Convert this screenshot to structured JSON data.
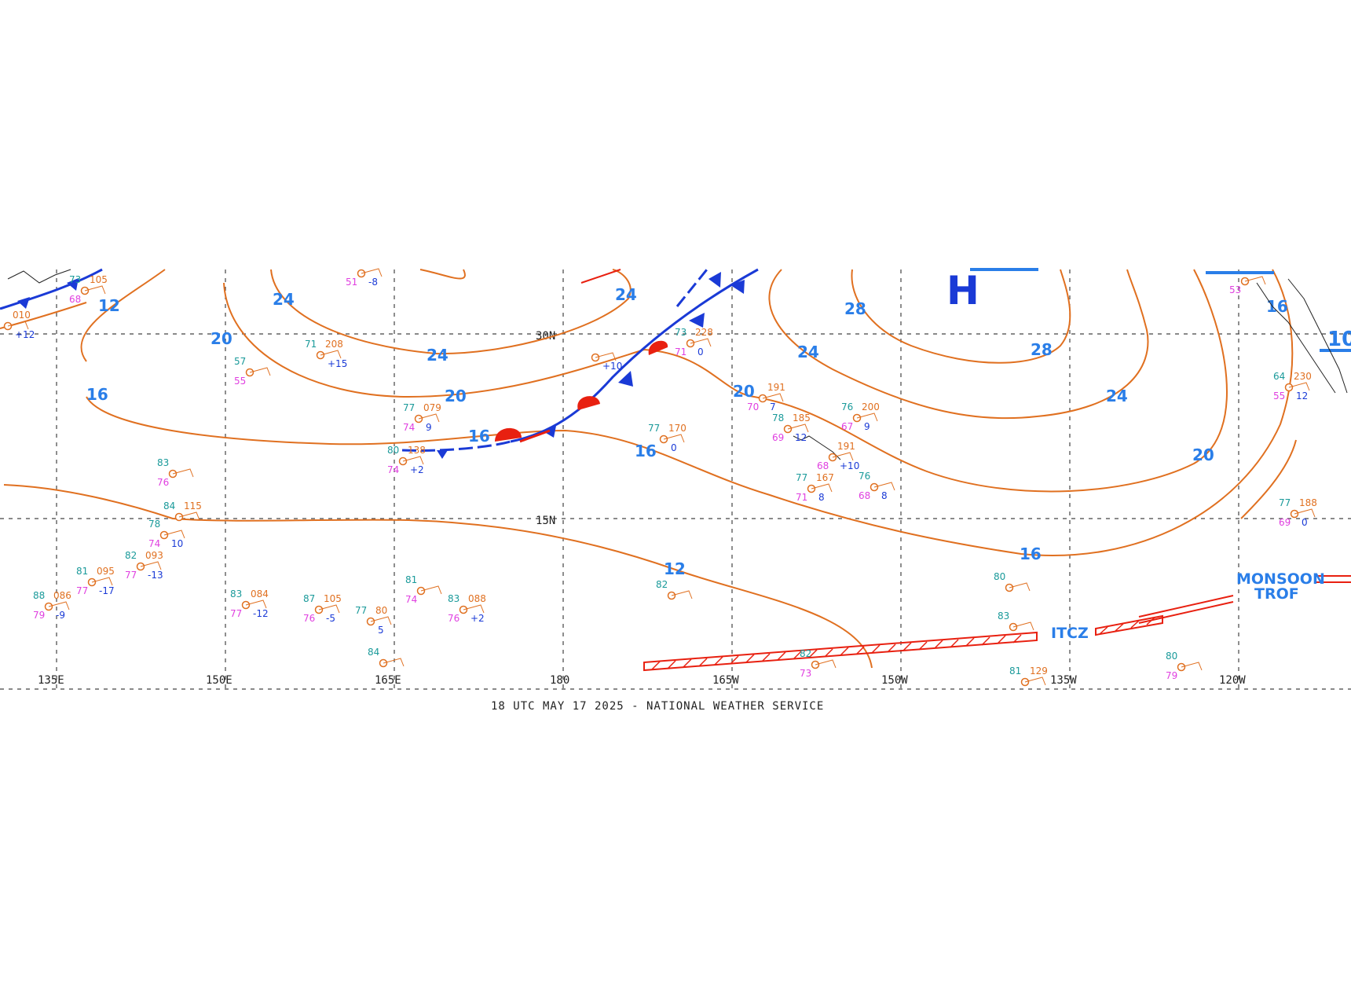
{
  "map": {
    "footer": "18 UTC MAY 17 2025 - NATIONAL WEATHER SERVICE",
    "lon_labels": [
      "135E",
      "150E",
      "165E",
      "180",
      "165W",
      "150W",
      "135W",
      "120W"
    ],
    "lat_labels": [
      "30N",
      "15N"
    ],
    "pressure_center": "H",
    "features": {
      "itcz": "ITCZ",
      "monsoon_line1": "MONSOON",
      "monsoon_line2": "TROF"
    },
    "isobar_labels": [
      "12",
      "16",
      "20",
      "24",
      "28",
      "10"
    ],
    "colors": {
      "isobar": "#e07020",
      "isobar_label": "#2a7ee8",
      "cold_front": "#1a3ad6",
      "warm_front": "#e82010",
      "itcz": "#e82010",
      "temperature": "#1a9a9a",
      "dewpoint": "#e040e0",
      "pressure_value": "#e07020",
      "tendency": "#1a3ad6"
    }
  },
  "stations": [
    {
      "t": "73",
      "p": "105",
      "d": "68",
      "tend": ""
    },
    {
      "t": "71",
      "p": "208",
      "d": "",
      "tend": "+15"
    },
    {
      "t": "57",
      "p": "",
      "d": "55",
      "tend": ""
    },
    {
      "t": "77",
      "p": "079",
      "d": "74",
      "tend": "9"
    },
    {
      "t": "80",
      "p": "138",
      "d": "74",
      "tend": "+2"
    },
    {
      "t": "73",
      "p": "228",
      "d": "71",
      "tend": "0"
    },
    {
      "t": "",
      "p": "191",
      "d": "70",
      "tend": "7"
    },
    {
      "t": "77",
      "p": "170",
      "d": "",
      "tend": "0"
    },
    {
      "t": "76",
      "p": "200",
      "d": "67",
      "tend": "9"
    },
    {
      "t": "78",
      "p": "185",
      "d": "69",
      "tend": "12"
    },
    {
      "t": "",
      "p": "191",
      "d": "68",
      "tend": "+10"
    },
    {
      "t": "77",
      "p": "167",
      "d": "71",
      "tend": "8"
    },
    {
      "t": "76",
      "p": "",
      "d": "68",
      "tend": "8"
    },
    {
      "t": "83",
      "p": "",
      "d": "76",
      "tend": ""
    },
    {
      "t": "84",
      "p": "115",
      "d": "",
      "tend": ""
    },
    {
      "t": "78",
      "p": "",
      "d": "74",
      "tend": "10"
    },
    {
      "t": "82",
      "p": "093",
      "d": "77",
      "tend": "-13"
    },
    {
      "t": "81",
      "p": "095",
      "d": "77",
      "tend": "-17"
    },
    {
      "t": "88",
      "p": "086",
      "d": "79",
      "tend": "-9"
    },
    {
      "t": "83",
      "p": "084",
      "d": "77",
      "tend": "-12"
    },
    {
      "t": "87",
      "p": "105",
      "d": "76",
      "tend": "-5"
    },
    {
      "t": "77",
      "p": "80",
      "d": "",
      "tend": "5"
    },
    {
      "t": "81",
      "p": "",
      "d": "74",
      "tend": ""
    },
    {
      "t": "83",
      "p": "088",
      "d": "76",
      "tend": "+2"
    },
    {
      "t": "84",
      "p": "",
      "d": "",
      "tend": ""
    },
    {
      "t": "82",
      "p": "",
      "d": "",
      "tend": ""
    },
    {
      "t": "82",
      "p": "",
      "d": "73",
      "tend": ""
    },
    {
      "t": "80",
      "p": "",
      "d": "",
      "tend": ""
    },
    {
      "t": "83",
      "p": "",
      "d": "",
      "tend": ""
    },
    {
      "t": "81",
      "p": "129",
      "d": "",
      "tend": ""
    },
    {
      "t": "80",
      "p": "",
      "d": "79",
      "tend": ""
    },
    {
      "t": "77",
      "p": "188",
      "d": "69",
      "tend": "0"
    },
    {
      "t": "64",
      "p": "230",
      "d": "55",
      "tend": "12"
    },
    {
      "t": "",
      "p": "",
      "d": "53",
      "tend": ""
    },
    {
      "t": "",
      "p": "",
      "d": "51",
      "tend": "-8"
    },
    {
      "t": "",
      "p": "",
      "d": "",
      "tend": "+10"
    },
    {
      "t": "",
      "p": "010",
      "d": "",
      "tend": "+12"
    }
  ]
}
